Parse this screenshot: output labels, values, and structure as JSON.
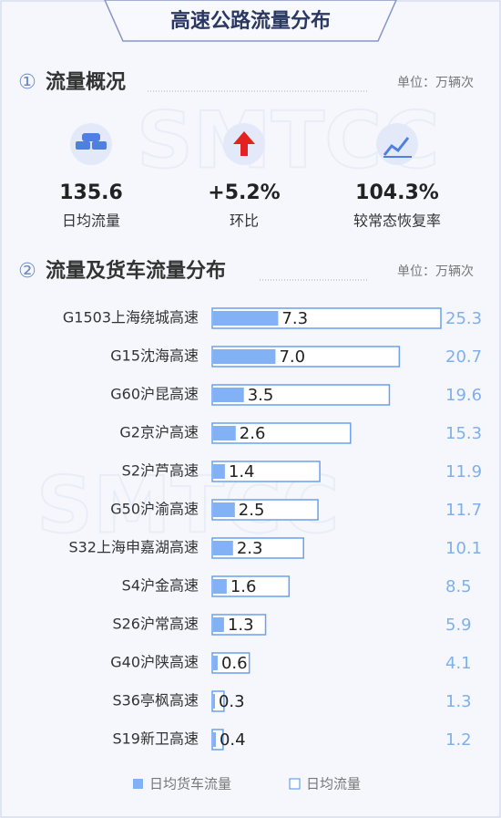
{
  "header": {
    "title": "高速公路流量分布"
  },
  "watermark": "SMTCC",
  "overview": {
    "number": "①",
    "title": "流量概况",
    "unit": "单位：万辆次",
    "kpis": [
      {
        "value": "135.6",
        "label": "日均流量"
      },
      {
        "value": "+5.2%",
        "label": "环比"
      },
      {
        "value": "104.3%",
        "label": "较常态恢复率"
      }
    ]
  },
  "distribution": {
    "number": "②",
    "unit": "单位：万辆次"
  },
  "chart_data": {
    "type": "bar",
    "orientation": "horizontal",
    "title": "流量及货车流量分布",
    "categories": [
      "G1503上海绕城高速",
      "G15沈海高速",
      "G60沪昆高速",
      "G2京沪高速",
      "S2沪芦高速",
      "G50沪渝高速",
      "S32上海申嘉湖高速",
      "S4沪金高速",
      "S26沪常高速",
      "G40沪陕高速",
      "S36亭枫高速",
      "S19新卫高速"
    ],
    "series": [
      {
        "name": "日均货车流量",
        "color": "#82b1f5",
        "values": [
          7.3,
          7.0,
          3.5,
          2.6,
          1.4,
          2.5,
          2.3,
          1.6,
          1.3,
          0.6,
          0.3,
          0.4
        ],
        "value_labels": [
          "7.3",
          "7.0",
          "3.5",
          "2.6",
          "1.4",
          "2.5",
          "2.3",
          "1.6",
          "1.3",
          "0.6",
          "0.3",
          "0.4"
        ]
      },
      {
        "name": "日均流量",
        "color": "#6aa0f0",
        "values": [
          25.3,
          20.7,
          19.6,
          15.3,
          11.9,
          11.7,
          10.1,
          8.5,
          5.9,
          4.1,
          1.3,
          1.2
        ],
        "value_labels": [
          "25.3",
          "20.7",
          "19.6",
          "15.3",
          "11.9",
          "11.7",
          "10.1",
          "8.5",
          "5.9",
          "4.1",
          "1.3",
          "1.2"
        ]
      }
    ]
  }
}
